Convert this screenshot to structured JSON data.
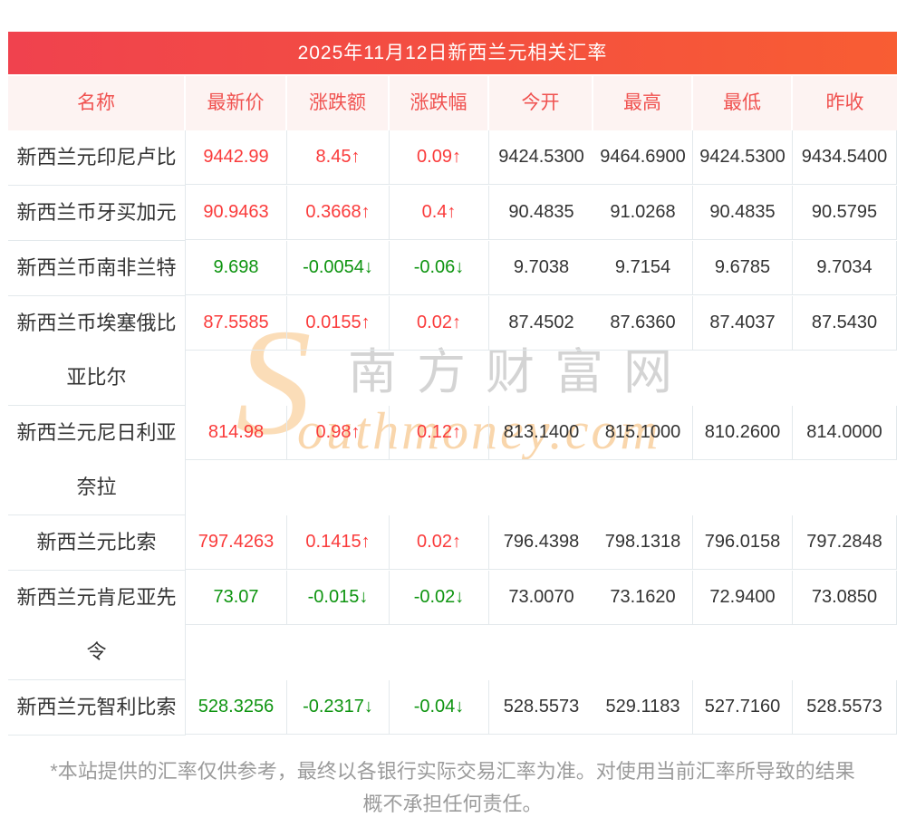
{
  "title": "2025年11月12日新西兰元相关汇率",
  "columns": [
    "名称",
    "最新价",
    "涨跌额",
    "涨跌幅",
    "今开",
    "最高",
    "最低",
    "昨收"
  ],
  "rows": [
    {
      "name": "新西兰元印尼卢比",
      "latest": "9442.99",
      "change": "8.45↑",
      "pct": "0.09↑",
      "open": "9424.5300",
      "high": "9464.6900",
      "low": "9424.5300",
      "prev": "9434.5400",
      "trend": "up"
    },
    {
      "name": "新西兰币牙买加元",
      "latest": "90.9463",
      "change": "0.3668↑",
      "pct": "0.4↑",
      "open": "90.4835",
      "high": "91.0268",
      "low": "90.4835",
      "prev": "90.5795",
      "trend": "up"
    },
    {
      "name": "新西兰币南非兰特",
      "latest": "9.698",
      "change": "-0.0054↓",
      "pct": "-0.06↓",
      "open": "9.7038",
      "high": "9.7154",
      "low": "9.6785",
      "prev": "9.7034",
      "trend": "down"
    },
    {
      "name": "新西兰币埃塞俄比亚比尔",
      "latest": "87.5585",
      "change": "0.0155↑",
      "pct": "0.02↑",
      "open": "87.4502",
      "high": "87.6360",
      "low": "87.4037",
      "prev": "87.5430",
      "trend": "up"
    },
    {
      "name": "新西兰元尼日利亚奈拉",
      "latest": "814.98",
      "change": "0.98↑",
      "pct": "0.12↑",
      "open": "813.1400",
      "high": "815.1000",
      "low": "810.2600",
      "prev": "814.0000",
      "trend": "up"
    },
    {
      "name": "新西兰元比索",
      "latest": "797.4263",
      "change": "0.1415↑",
      "pct": "0.02↑",
      "open": "796.4398",
      "high": "798.1318",
      "low": "796.0158",
      "prev": "797.2848",
      "trend": "up"
    },
    {
      "name": "新西兰元肯尼亚先令",
      "latest": "73.07",
      "change": "-0.015↓",
      "pct": "-0.02↓",
      "open": "73.0070",
      "high": "73.1620",
      "low": "72.9400",
      "prev": "73.0850",
      "trend": "down"
    },
    {
      "name": "新西兰元智利比索",
      "latest": "528.3256",
      "change": "-0.2317↓",
      "pct": "-0.04↓",
      "open": "528.5573",
      "high": "529.1183",
      "low": "527.7160",
      "prev": "528.5573",
      "trend": "down"
    }
  ],
  "watermark": {
    "initial": "S",
    "cn": "南方财富网",
    "en": "outhmoney.com"
  },
  "footer": {
    "line1": "*本站提供的汇率仅供参考，最终以各银行实际交易汇率为准。对使用当前汇率所导致的结果",
    "line2": "概不承担任何责任。"
  },
  "colors": {
    "up": "#fa3b3b",
    "down": "#0e9410",
    "title_gradient_start": "#f0424e",
    "title_gradient_end": "#f85d33",
    "header_bg": "#fdf3f2",
    "header_text": "#f05250",
    "border": "#e3e9ec",
    "body_text": "#333333",
    "footer_text": "#9b9b9b"
  }
}
